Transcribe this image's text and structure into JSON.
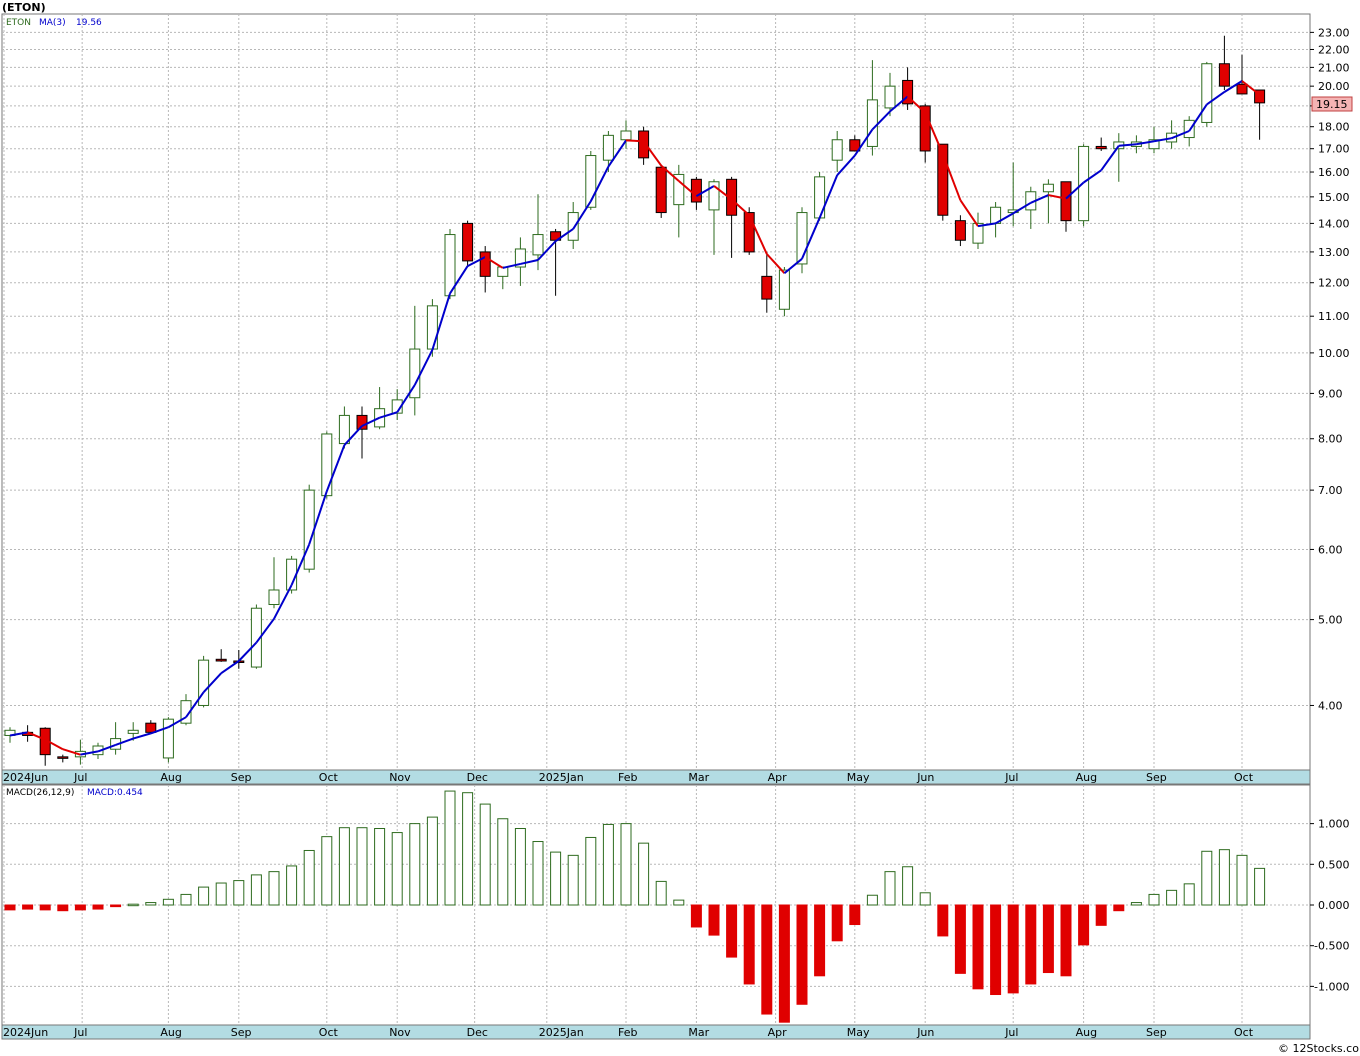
{
  "chart_data": [
    {
      "type": "candlestick",
      "ticker_label": "(ETON)",
      "legend": {
        "symbol": "ETON",
        "indicator": "MA(3)",
        "value": "19.56"
      },
      "last_price": "19.15",
      "scale": "log",
      "ylim": [
        3.4,
        24.0
      ],
      "y_ticks": [
        "4.00",
        "5.00",
        "6.00",
        "7.00",
        "8.00",
        "9.00",
        "10.00",
        "11.00",
        "12.00",
        "13.00",
        "14.00",
        "15.00",
        "16.00",
        "17.00",
        "18.00",
        "19.00",
        "20.00",
        "21.00",
        "22.00",
        "23.00"
      ],
      "x_ticks": [
        "2024Jun",
        "Jul",
        "Aug",
        "Sep",
        "Oct",
        "Nov",
        "Dec",
        "2025Jan",
        "Feb",
        "Mar",
        "Apr",
        "May",
        "Jun",
        "Jul",
        "Aug",
        "Sep",
        "Oct"
      ],
      "candles": [
        {
          "o": 3.7,
          "h": 3.78,
          "l": 3.63,
          "c": 3.75
        },
        {
          "o": 3.73,
          "h": 3.8,
          "l": 3.64,
          "c": 3.7
        },
        {
          "o": 3.77,
          "h": 3.78,
          "l": 3.42,
          "c": 3.52
        },
        {
          "o": 3.5,
          "h": 3.52,
          "l": 3.45,
          "c": 3.49
        },
        {
          "o": 3.5,
          "h": 3.66,
          "l": 3.43,
          "c": 3.55
        },
        {
          "o": 3.52,
          "h": 3.63,
          "l": 3.48,
          "c": 3.6
        },
        {
          "o": 3.57,
          "h": 3.83,
          "l": 3.52,
          "c": 3.67
        },
        {
          "o": 3.72,
          "h": 3.83,
          "l": 3.65,
          "c": 3.75
        },
        {
          "o": 3.82,
          "h": 3.85,
          "l": 3.72,
          "c": 3.73
        },
        {
          "o": 3.49,
          "h": 3.88,
          "l": 3.45,
          "c": 3.86
        },
        {
          "o": 3.82,
          "h": 4.12,
          "l": 3.8,
          "c": 4.05
        },
        {
          "o": 4.0,
          "h": 4.55,
          "l": 3.98,
          "c": 4.5
        },
        {
          "o": 4.51,
          "h": 4.63,
          "l": 4.48,
          "c": 4.49
        },
        {
          "o": 4.49,
          "h": 4.62,
          "l": 4.4,
          "c": 4.48
        },
        {
          "o": 4.42,
          "h": 5.2,
          "l": 4.4,
          "c": 5.15
        },
        {
          "o": 5.2,
          "h": 5.88,
          "l": 5.15,
          "c": 5.4
        },
        {
          "o": 5.4,
          "h": 5.9,
          "l": 5.35,
          "c": 5.85
        },
        {
          "o": 5.7,
          "h": 7.1,
          "l": 5.65,
          "c": 7.0
        },
        {
          "o": 6.9,
          "h": 8.15,
          "l": 6.85,
          "c": 8.1
        },
        {
          "o": 7.9,
          "h": 8.7,
          "l": 7.8,
          "c": 8.5
        },
        {
          "o": 8.5,
          "h": 8.7,
          "l": 7.6,
          "c": 8.2
        },
        {
          "o": 8.25,
          "h": 9.15,
          "l": 8.2,
          "c": 8.65
        },
        {
          "o": 8.55,
          "h": 9.1,
          "l": 8.4,
          "c": 8.85
        },
        {
          "o": 8.9,
          "h": 11.3,
          "l": 8.5,
          "c": 10.1
        },
        {
          "o": 10.1,
          "h": 11.5,
          "l": 9.9,
          "c": 11.3
        },
        {
          "o": 11.6,
          "h": 13.8,
          "l": 11.5,
          "c": 13.6
        },
        {
          "o": 14.0,
          "h": 14.1,
          "l": 12.5,
          "c": 12.7
        },
        {
          "o": 13.0,
          "h": 13.2,
          "l": 11.7,
          "c": 12.2
        },
        {
          "o": 12.2,
          "h": 12.5,
          "l": 11.8,
          "c": 12.5
        },
        {
          "o": 12.5,
          "h": 13.5,
          "l": 11.9,
          "c": 13.1
        },
        {
          "o": 12.9,
          "h": 15.1,
          "l": 12.4,
          "c": 13.6
        },
        {
          "o": 13.7,
          "h": 13.8,
          "l": 11.6,
          "c": 13.4
        },
        {
          "o": 13.4,
          "h": 14.8,
          "l": 13.1,
          "c": 14.4
        },
        {
          "o": 14.6,
          "h": 16.9,
          "l": 14.5,
          "c": 16.7
        },
        {
          "o": 16.5,
          "h": 17.8,
          "l": 16.0,
          "c": 17.6
        },
        {
          "o": 17.4,
          "h": 18.3,
          "l": 17.0,
          "c": 17.8
        },
        {
          "o": 17.8,
          "h": 18.0,
          "l": 16.3,
          "c": 16.6
        },
        {
          "o": 16.2,
          "h": 16.3,
          "l": 14.2,
          "c": 14.4
        },
        {
          "o": 14.7,
          "h": 16.3,
          "l": 13.5,
          "c": 15.9
        },
        {
          "o": 15.7,
          "h": 15.8,
          "l": 14.5,
          "c": 14.8
        },
        {
          "o": 14.5,
          "h": 15.7,
          "l": 12.9,
          "c": 15.6
        },
        {
          "o": 15.7,
          "h": 15.8,
          "l": 12.8,
          "c": 14.3
        },
        {
          "o": 14.4,
          "h": 14.6,
          "l": 12.9,
          "c": 13.0
        },
        {
          "o": 12.2,
          "h": 13.0,
          "l": 11.1,
          "c": 11.5
        },
        {
          "o": 11.2,
          "h": 12.5,
          "l": 11.0,
          "c": 12.4
        },
        {
          "o": 12.6,
          "h": 14.6,
          "l": 12.3,
          "c": 14.4
        },
        {
          "o": 14.2,
          "h": 16.0,
          "l": 14.1,
          "c": 15.8
        },
        {
          "o": 16.5,
          "h": 17.8,
          "l": 16.0,
          "c": 17.4
        },
        {
          "o": 17.4,
          "h": 17.6,
          "l": 16.9,
          "c": 16.9
        },
        {
          "o": 17.1,
          "h": 21.4,
          "l": 16.7,
          "c": 19.3
        },
        {
          "o": 18.9,
          "h": 20.7,
          "l": 18.5,
          "c": 20.0
        },
        {
          "o": 20.3,
          "h": 21.0,
          "l": 18.8,
          "c": 19.1
        },
        {
          "o": 19.0,
          "h": 19.1,
          "l": 16.4,
          "c": 16.9
        },
        {
          "o": 17.2,
          "h": 17.2,
          "l": 14.1,
          "c": 14.3
        },
        {
          "o": 14.1,
          "h": 14.3,
          "l": 13.2,
          "c": 13.4
        },
        {
          "o": 13.3,
          "h": 14.4,
          "l": 13.1,
          "c": 14.0
        },
        {
          "o": 14.0,
          "h": 14.8,
          "l": 13.5,
          "c": 14.6
        },
        {
          "o": 14.4,
          "h": 16.4,
          "l": 13.9,
          "c": 14.5
        },
        {
          "o": 14.5,
          "h": 15.4,
          "l": 13.8,
          "c": 15.2
        },
        {
          "o": 15.2,
          "h": 15.7,
          "l": 14.0,
          "c": 15.5
        },
        {
          "o": 15.6,
          "h": 15.6,
          "l": 13.7,
          "c": 14.1
        },
        {
          "o": 14.1,
          "h": 17.2,
          "l": 13.9,
          "c": 17.1
        },
        {
          "o": 17.1,
          "h": 17.5,
          "l": 16.9,
          "c": 17.0
        },
        {
          "o": 17.0,
          "h": 17.7,
          "l": 15.6,
          "c": 17.3
        },
        {
          "o": 17.1,
          "h": 17.6,
          "l": 16.8,
          "c": 17.3
        },
        {
          "o": 17.0,
          "h": 18.0,
          "l": 16.8,
          "c": 17.4
        },
        {
          "o": 17.3,
          "h": 18.3,
          "l": 17.0,
          "c": 17.7
        },
        {
          "o": 17.5,
          "h": 18.5,
          "l": 17.1,
          "c": 18.3
        },
        {
          "o": 18.2,
          "h": 21.3,
          "l": 18.0,
          "c": 21.2
        },
        {
          "o": 21.2,
          "h": 22.8,
          "l": 19.8,
          "c": 20.0
        },
        {
          "o": 20.1,
          "h": 21.7,
          "l": 19.6,
          "c": 19.6
        },
        {
          "o": 19.8,
          "h": 19.8,
          "l": 17.4,
          "c": 19.15
        }
      ],
      "ma": [
        3.7,
        3.73,
        3.66,
        3.57,
        3.52,
        3.55,
        3.61,
        3.67,
        3.72,
        3.78,
        3.88,
        4.14,
        4.35,
        4.49,
        4.71,
        5.01,
        5.47,
        6.08,
        6.98,
        7.87,
        8.27,
        8.45,
        8.57,
        9.2,
        10.08,
        11.67,
        12.53,
        12.83,
        12.47,
        12.6,
        12.73,
        13.37,
        13.8,
        14.83,
        16.23,
        17.37,
        17.33,
        16.27,
        15.63,
        15.03,
        15.43,
        14.9,
        14.3,
        12.93,
        12.3,
        12.77,
        14.2,
        15.87,
        16.7,
        17.87,
        18.73,
        19.47,
        18.67,
        16.77,
        14.87,
        13.9,
        14.0,
        14.37,
        14.77,
        15.07,
        14.93,
        15.57,
        16.07,
        17.13,
        17.2,
        17.33,
        17.47,
        17.8,
        19.07,
        19.7,
        20.27,
        19.56
      ],
      "ma_colors": [
        "b",
        "b",
        "r",
        "r",
        "r",
        "b",
        "b",
        "b",
        "b",
        "b",
        "b",
        "b",
        "b",
        "b",
        "b",
        "b",
        "b",
        "b",
        "b",
        "b",
        "b",
        "b",
        "b",
        "b",
        "b",
        "b",
        "b",
        "b",
        "r",
        "b",
        "b",
        "b",
        "b",
        "b",
        "b",
        "b",
        "r",
        "r",
        "r",
        "r",
        "b",
        "r",
        "r",
        "r",
        "r",
        "b",
        "b",
        "b",
        "b",
        "b",
        "b",
        "b",
        "r",
        "r",
        "r",
        "r",
        "b",
        "b",
        "b",
        "b",
        "r",
        "b",
        "b",
        "b",
        "b",
        "b",
        "b",
        "b",
        "b",
        "b",
        "b",
        "r"
      ]
    },
    {
      "type": "bar",
      "title": "MACD(26,12,9)",
      "legend_value": "MACD:0.454",
      "ylim": [
        -1.45,
        1.45
      ],
      "y_ticks": [
        "1.000",
        "0.500",
        "0.000",
        "-0.500",
        "-1.000"
      ],
      "x_ticks": [
        "2024Jun",
        "Jul",
        "Aug",
        "Sep",
        "Oct",
        "Nov",
        "Dec",
        "2025Jan",
        "Feb",
        "Mar",
        "Apr",
        "May",
        "Jun",
        "Jul",
        "Aug",
        "Sep",
        "Oct"
      ],
      "values": [
        -0.06,
        -0.05,
        -0.06,
        -0.07,
        -0.06,
        -0.05,
        -0.02,
        0.01,
        0.03,
        0.07,
        0.13,
        0.22,
        0.27,
        0.3,
        0.37,
        0.41,
        0.48,
        0.67,
        0.84,
        0.95,
        0.95,
        0.94,
        0.89,
        1.0,
        1.08,
        1.4,
        1.38,
        1.24,
        1.06,
        0.94,
        0.78,
        0.65,
        0.61,
        0.83,
        0.99,
        1.0,
        0.76,
        0.29,
        0.06,
        -0.27,
        -0.37,
        -0.64,
        -0.97,
        -1.34,
        -1.44,
        -1.22,
        -0.87,
        -0.44,
        -0.24,
        0.12,
        0.41,
        0.47,
        0.15,
        -0.38,
        -0.84,
        -1.03,
        -1.1,
        -1.08,
        -0.97,
        -0.83,
        -0.87,
        -0.49,
        -0.25,
        -0.07,
        0.03,
        0.13,
        0.18,
        0.26,
        0.66,
        0.68,
        0.61,
        0.45
      ]
    }
  ],
  "colors": {
    "up": "#ffffff",
    "up_border": "#2e6b1f",
    "down": "#e00000",
    "ma_up": "#0000cc",
    "ma_down": "#e00000",
    "grid": "#b8b8b8",
    "axis_band": "#b3dce3"
  },
  "footer": "© 12Stocks.com"
}
